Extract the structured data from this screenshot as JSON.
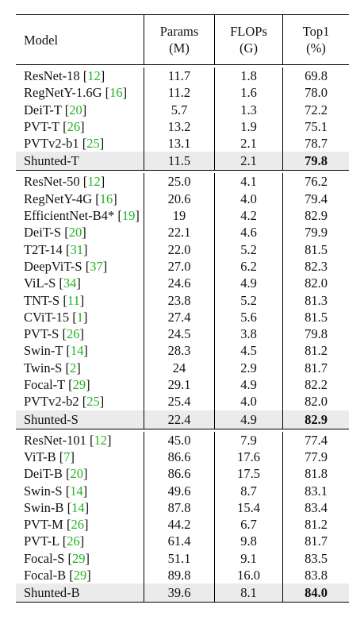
{
  "header": {
    "model": "Model",
    "params_line1": "Params",
    "params_line2": "(M)",
    "flops_line1": "FLOPs",
    "flops_line2": "(G)",
    "top1_line1": "Top1",
    "top1_line2": "(%)"
  },
  "sections": [
    {
      "rows": [
        {
          "model": "ResNet-18",
          "ref": "12",
          "params": "11.7",
          "flops": "1.8",
          "top1": "69.8"
        },
        {
          "model": "RegNetY-1.6G",
          "ref": "16",
          "params": "11.2",
          "flops": "1.6",
          "top1": "78.0"
        },
        {
          "model": "DeiT-T",
          "ref": "20",
          "params": "5.7",
          "flops": "1.3",
          "top1": "72.2"
        },
        {
          "model": "PVT-T",
          "ref": "26",
          "params": "13.2",
          "flops": "1.9",
          "top1": "75.1"
        },
        {
          "model": "PVTv2-b1",
          "ref": "25",
          "params": "13.1",
          "flops": "2.1",
          "top1": "78.7"
        }
      ],
      "ours": {
        "model": "Shunted-T",
        "params": "11.5",
        "flops": "2.1",
        "top1": "79.8"
      }
    },
    {
      "rows": [
        {
          "model": "ResNet-50",
          "ref": "12",
          "params": "25.0",
          "flops": "4.1",
          "top1": "76.2"
        },
        {
          "model": "RegNetY-4G",
          "ref": "16",
          "params": "20.6",
          "flops": "4.0",
          "top1": "79.4"
        },
        {
          "model": "EfficientNet-B4*",
          "ref": "19",
          "params": "19",
          "flops": "4.2",
          "top1": "82.9"
        },
        {
          "model": "DeiT-S",
          "ref": "20",
          "params": "22.1",
          "flops": "4.6",
          "top1": "79.9"
        },
        {
          "model": "T2T-14",
          "ref": "31",
          "params": "22.0",
          "flops": "5.2",
          "top1": "81.5"
        },
        {
          "model": "DeepViT-S",
          "ref": "37",
          "params": "27.0",
          "flops": "6.2",
          "top1": "82.3"
        },
        {
          "model": "ViL-S",
          "ref": "34",
          "params": "24.6",
          "flops": "4.9",
          "top1": "82.0"
        },
        {
          "model": "TNT-S",
          "ref": "11",
          "params": "23.8",
          "flops": "5.2",
          "top1": "81.3"
        },
        {
          "model": "CViT-15",
          "ref": "1",
          "params": "27.4",
          "flops": "5.6",
          "top1": "81.5"
        },
        {
          "model": "PVT-S",
          "ref": "26",
          "params": "24.5",
          "flops": "3.8",
          "top1": "79.8"
        },
        {
          "model": "Swin-T",
          "ref": "14",
          "params": "28.3",
          "flops": "4.5",
          "top1": "81.2"
        },
        {
          "model": "Twin-S",
          "ref": "2",
          "params": "24",
          "flops": "2.9",
          "top1": "81.7"
        },
        {
          "model": "Focal-T",
          "ref": "29",
          "params": "29.1",
          "flops": "4.9",
          "top1": "82.2"
        },
        {
          "model": "PVTv2-b2",
          "ref": "25",
          "params": "25.4",
          "flops": "4.0",
          "top1": "82.0"
        }
      ],
      "ours": {
        "model": "Shunted-S",
        "params": "22.4",
        "flops": "4.9",
        "top1": "82.9"
      }
    },
    {
      "rows": [
        {
          "model": "ResNet-101",
          "ref": "12",
          "params": "45.0",
          "flops": "7.9",
          "top1": "77.4"
        },
        {
          "model": "ViT-B",
          "ref": "7",
          "params": "86.6",
          "flops": "17.6",
          "top1": "77.9"
        },
        {
          "model": "DeiT-B",
          "ref": "20",
          "params": "86.6",
          "flops": "17.5",
          "top1": "81.8"
        },
        {
          "model": "Swin-S",
          "ref": "14",
          "params": "49.6",
          "flops": "8.7",
          "top1": "83.1"
        },
        {
          "model": "Swin-B",
          "ref": "14",
          "params": "87.8",
          "flops": "15.4",
          "top1": "83.4"
        },
        {
          "model": "PVT-M",
          "ref": "26",
          "params": "44.2",
          "flops": "6.7",
          "top1": "81.2"
        },
        {
          "model": "PVT-L",
          "ref": "26",
          "params": "61.4",
          "flops": "9.8",
          "top1": "81.7"
        },
        {
          "model": "Focal-S",
          "ref": "29",
          "params": "51.1",
          "flops": "9.1",
          "top1": "83.5"
        },
        {
          "model": "Focal-B",
          "ref": "29",
          "params": "89.8",
          "flops": "16.0",
          "top1": "83.8"
        }
      ],
      "ours": {
        "model": "Shunted-B",
        "params": "39.6",
        "flops": "8.1",
        "top1": "84.0"
      }
    }
  ],
  "colors": {
    "citation": "#22b422",
    "highlight_row": "#ebebeb"
  }
}
